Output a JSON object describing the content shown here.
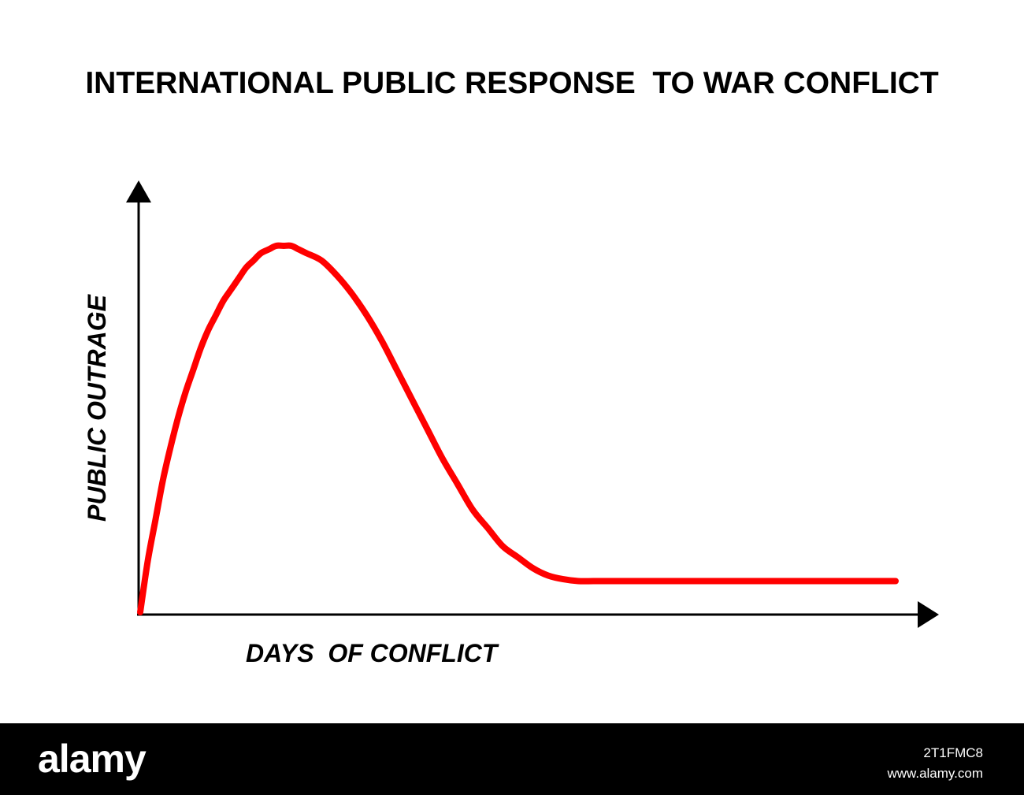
{
  "chart_data": {
    "type": "line",
    "title": "INTERNATIONAL PUBLIC RESPONSE  TO WAR CONFLICT",
    "xlabel": "DAYS  OF CONFLICT",
    "ylabel": "PUBLIC OUTRAGE",
    "grid": false,
    "series": [
      {
        "color": "#ff0000",
        "x": [
          0,
          1,
          2,
          3,
          4,
          5,
          6,
          7,
          8,
          9,
          10,
          11,
          12,
          13,
          14,
          15,
          16,
          17,
          18,
          19,
          20,
          21,
          22,
          24,
          26,
          28,
          30,
          32,
          34,
          36,
          38,
          40,
          42,
          44,
          46,
          48,
          50,
          52,
          54,
          56,
          58,
          60,
          62,
          64,
          66,
          68,
          70,
          72,
          74,
          76,
          78,
          80,
          84,
          88,
          92,
          96,
          100
        ],
        "y": [
          0,
          14,
          25,
          36,
          45,
          53,
          60,
          66,
          72,
          77,
          81,
          85,
          88,
          91,
          94,
          96,
          98,
          99,
          100,
          100,
          100,
          99,
          98,
          96,
          92,
          87,
          81,
          74,
          66,
          58,
          50,
          42,
          35,
          28,
          23,
          18,
          15,
          12,
          10,
          9,
          8.5,
          8.5,
          8.5,
          8.5,
          8.5,
          8.5,
          8.5,
          8.5,
          8.5,
          8.5,
          8.5,
          8.5,
          8.5,
          8.5,
          8.5,
          8.5,
          8.5
        ]
      }
    ]
  },
  "watermark": {
    "logo": "alamy",
    "image_id": "2T1FMC8",
    "url": "www.alamy.com"
  }
}
